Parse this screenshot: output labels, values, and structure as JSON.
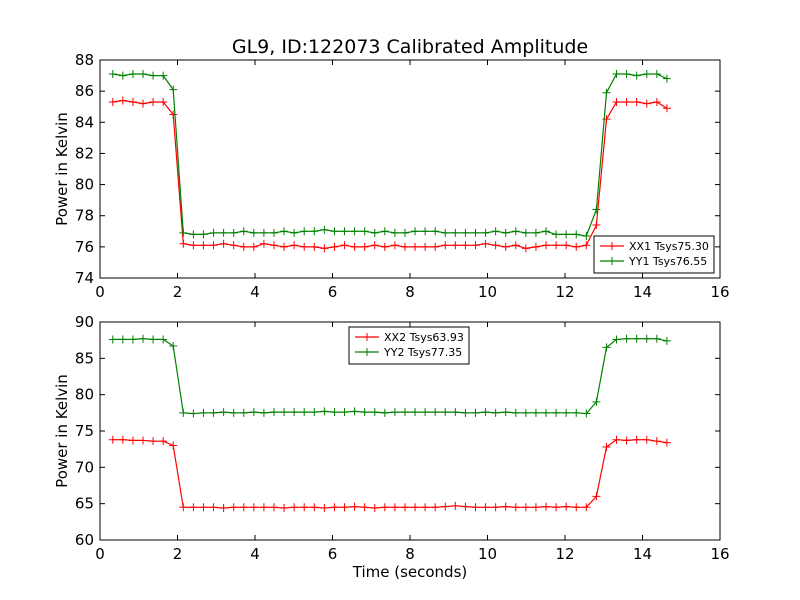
{
  "figure": {
    "title": "GL9, ID:122073 Calibrated Amplitude",
    "xlabel": "Time (seconds)"
  },
  "colors": {
    "xx": "#ff0000",
    "yy": "#008000"
  },
  "chart_data": [
    {
      "type": "line",
      "ylabel": "Power in Kelvin",
      "xlim": [
        0,
        16
      ],
      "ylim": [
        74,
        88
      ],
      "xticks": [
        0,
        2,
        4,
        6,
        8,
        10,
        12,
        14,
        16
      ],
      "yticks": [
        74,
        76,
        78,
        80,
        82,
        84,
        86,
        88
      ],
      "legend": "lower-right",
      "x": [
        0.33,
        0.59,
        0.85,
        1.11,
        1.37,
        1.63,
        1.89,
        2.15,
        2.41,
        2.67,
        2.93,
        3.19,
        3.45,
        3.71,
        3.97,
        4.23,
        4.49,
        4.75,
        5.01,
        5.27,
        5.53,
        5.79,
        6.05,
        6.31,
        6.57,
        6.83,
        7.09,
        7.35,
        7.61,
        7.87,
        8.13,
        8.39,
        8.65,
        8.91,
        9.17,
        9.43,
        9.69,
        9.95,
        10.21,
        10.47,
        10.73,
        10.99,
        11.25,
        11.51,
        11.77,
        12.03,
        12.29,
        12.55,
        12.81,
        13.07,
        13.33,
        13.59,
        13.85,
        14.11,
        14.37,
        14.63
      ],
      "series": [
        {
          "name": "XX1 Tsys75.30",
          "color": "#ff0000",
          "values": [
            85.3,
            85.4,
            85.3,
            85.2,
            85.3,
            85.3,
            84.5,
            76.2,
            76.1,
            76.1,
            76.1,
            76.2,
            76.1,
            76.0,
            76.0,
            76.2,
            76.1,
            76.0,
            76.1,
            76.0,
            76.0,
            75.9,
            76.0,
            76.1,
            76.0,
            76.0,
            76.1,
            76.0,
            76.1,
            76.0,
            76.0,
            76.0,
            76.0,
            76.1,
            76.1,
            76.1,
            76.1,
            76.2,
            76.1,
            76.0,
            76.1,
            75.9,
            76.0,
            76.1,
            76.1,
            76.1,
            76.0,
            76.1,
            77.4,
            84.2,
            85.3,
            85.3,
            85.3,
            85.2,
            85.3,
            84.9
          ]
        },
        {
          "name": "YY1 Tsys76.55",
          "color": "#008000",
          "values": [
            87.1,
            87.0,
            87.1,
            87.1,
            87.0,
            87.0,
            86.1,
            76.9,
            76.8,
            76.8,
            76.9,
            76.9,
            76.9,
            77.0,
            76.9,
            76.9,
            76.9,
            77.0,
            76.9,
            77.0,
            77.0,
            77.1,
            77.0,
            77.0,
            77.0,
            77.0,
            76.9,
            77.0,
            76.9,
            76.9,
            77.0,
            77.0,
            77.0,
            76.9,
            76.9,
            76.9,
            76.9,
            76.9,
            77.0,
            76.9,
            77.0,
            76.9,
            76.9,
            77.0,
            76.8,
            76.8,
            76.8,
            76.7,
            78.4,
            85.9,
            87.1,
            87.1,
            87.0,
            87.1,
            87.1,
            86.8
          ]
        }
      ]
    },
    {
      "type": "line",
      "ylabel": "Power in Kelvin",
      "xlabel": "Time (seconds)",
      "xlim": [
        0,
        16
      ],
      "ylim": [
        60,
        90
      ],
      "xticks": [
        0,
        2,
        4,
        6,
        8,
        10,
        12,
        14,
        16
      ],
      "yticks": [
        60,
        65,
        70,
        75,
        80,
        85,
        90
      ],
      "legend": "upper-center",
      "x": [
        0.33,
        0.59,
        0.85,
        1.11,
        1.37,
        1.63,
        1.89,
        2.15,
        2.41,
        2.67,
        2.93,
        3.19,
        3.45,
        3.71,
        3.97,
        4.23,
        4.49,
        4.75,
        5.01,
        5.27,
        5.53,
        5.79,
        6.05,
        6.31,
        6.57,
        6.83,
        7.09,
        7.35,
        7.61,
        7.87,
        8.13,
        8.39,
        8.65,
        8.91,
        9.17,
        9.43,
        9.69,
        9.95,
        10.21,
        10.47,
        10.73,
        10.99,
        11.25,
        11.51,
        11.77,
        12.03,
        12.29,
        12.55,
        12.81,
        13.07,
        13.33,
        13.59,
        13.85,
        14.11,
        14.37,
        14.63
      ],
      "series": [
        {
          "name": "XX2 Tsys63.93",
          "color": "#ff0000",
          "values": [
            73.8,
            73.8,
            73.7,
            73.7,
            73.6,
            73.6,
            73.0,
            64.5,
            64.5,
            64.5,
            64.5,
            64.4,
            64.5,
            64.5,
            64.5,
            64.5,
            64.5,
            64.4,
            64.5,
            64.5,
            64.5,
            64.4,
            64.5,
            64.5,
            64.6,
            64.5,
            64.4,
            64.5,
            64.5,
            64.5,
            64.5,
            64.5,
            64.5,
            64.6,
            64.7,
            64.6,
            64.5,
            64.5,
            64.5,
            64.6,
            64.5,
            64.5,
            64.5,
            64.6,
            64.5,
            64.6,
            64.5,
            64.5,
            66.0,
            72.8,
            73.8,
            73.7,
            73.8,
            73.8,
            73.6,
            73.4
          ]
        },
        {
          "name": "YY2 Tsys77.35",
          "color": "#008000",
          "values": [
            87.6,
            87.6,
            87.6,
            87.7,
            87.6,
            87.6,
            86.7,
            77.5,
            77.4,
            77.5,
            77.5,
            77.6,
            77.5,
            77.5,
            77.6,
            77.5,
            77.6,
            77.6,
            77.6,
            77.6,
            77.6,
            77.7,
            77.6,
            77.6,
            77.7,
            77.6,
            77.6,
            77.5,
            77.6,
            77.6,
            77.6,
            77.6,
            77.6,
            77.6,
            77.6,
            77.5,
            77.5,
            77.6,
            77.5,
            77.6,
            77.5,
            77.5,
            77.5,
            77.5,
            77.5,
            77.5,
            77.5,
            77.4,
            79.0,
            86.5,
            87.6,
            87.7,
            87.7,
            87.7,
            87.7,
            87.4
          ]
        }
      ]
    }
  ]
}
